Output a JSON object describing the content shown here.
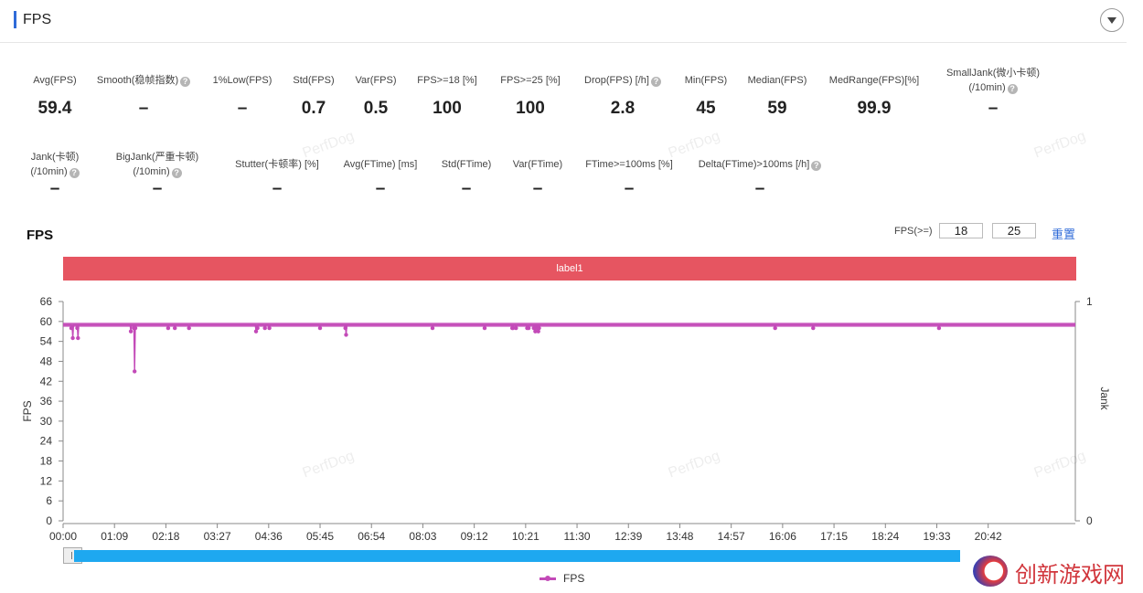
{
  "header": {
    "title": "FPS"
  },
  "metrics_row1": [
    {
      "label": "Avg(FPS)",
      "value": "59.4",
      "help": false
    },
    {
      "label": "Smooth(稳帧指数)",
      "value": "–",
      "help": true
    },
    {
      "label": "1%Low(FPS)",
      "value": "–",
      "help": false
    },
    {
      "label": "Std(FPS)",
      "value": "0.7",
      "help": false
    },
    {
      "label": "Var(FPS)",
      "value": "0.5",
      "help": false
    },
    {
      "label": "FPS>=18 [%]",
      "value": "100",
      "help": false
    },
    {
      "label": "FPS>=25 [%]",
      "value": "100",
      "help": false
    },
    {
      "label": "Drop(FPS) [/h]",
      "value": "2.8",
      "help": true
    },
    {
      "label": "Min(FPS)",
      "value": "45",
      "help": false
    },
    {
      "label": "Median(FPS)",
      "value": "59",
      "help": false
    },
    {
      "label": "MedRange(FPS)[%]",
      "value": "99.9",
      "help": false
    },
    {
      "label": "SmallJank(微小卡顿)",
      "label2": "(/10min)",
      "value": "–",
      "help": true
    }
  ],
  "metrics_row2": [
    {
      "label": "Jank(卡顿)",
      "label2": "(/10min)",
      "value": "–",
      "help": true
    },
    {
      "label": "BigJank(严重卡顿)",
      "label2": "(/10min)",
      "value": "–",
      "help": true
    },
    {
      "label": "Stutter(卡顿率) [%]",
      "value": "–",
      "help": false
    },
    {
      "label": "Avg(FTime) [ms]",
      "value": "–",
      "help": false
    },
    {
      "label": "Std(FTime)",
      "value": "–",
      "help": false
    },
    {
      "label": "Var(FTime)",
      "value": "–",
      "help": false
    },
    {
      "label": "FTime>=100ms [%]",
      "value": "–",
      "help": false
    },
    {
      "label": "Delta(FTime)>100ms [/h]",
      "value": "–",
      "help": true
    }
  ],
  "chart_title": "FPS",
  "threshold": {
    "label": "FPS(>=)",
    "low": "18",
    "high": "25",
    "reset": "重置"
  },
  "label_band": "label1",
  "watermark": "PerfDog",
  "brand_text": "创新游戏网",
  "colors": {
    "accent": "#2f6bd8",
    "series": "#c34ab8",
    "label_band": "#e65561",
    "slider": "#1ea8f0"
  },
  "chart_data": {
    "type": "line",
    "xlabel": "",
    "ylabel": "FPS",
    "y2label": "Jank",
    "ylim": [
      0,
      66
    ],
    "yticks": [
      0,
      6,
      12,
      18,
      24,
      30,
      36,
      42,
      48,
      54,
      60,
      66
    ],
    "y2lim": [
      0,
      1
    ],
    "y2ticks": [
      0,
      1
    ],
    "xlim_seconds": [
      0,
      1359
    ],
    "xticks": [
      "00:00",
      "01:09",
      "02:18",
      "03:27",
      "04:36",
      "05:45",
      "06:54",
      "08:03",
      "09:12",
      "10:21",
      "11:30",
      "12:39",
      "13:48",
      "14:57",
      "16:06",
      "17:15",
      "18:24",
      "19:33",
      "20:42"
    ],
    "grid": false,
    "legend": "bottom-center",
    "series": [
      {
        "name": "FPS",
        "baseline": 59,
        "x": [
          "00:11",
          "00:13",
          "00:19",
          "00:20",
          "01:31",
          "01:35",
          "01:36",
          "01:37",
          "02:21",
          "02:30",
          "02:49",
          "04:19",
          "04:21",
          "04:31",
          "04:37",
          "05:45",
          "06:19",
          "06:20",
          "08:16",
          "09:26",
          "10:03",
          "10:04",
          "10:08",
          "10:23",
          "10:25",
          "10:32",
          "10:33",
          "10:34",
          "10:37",
          "10:38",
          "10:39",
          "15:56",
          "16:47",
          "19:36"
        ],
        "y": [
          58,
          55,
          58,
          55,
          57,
          58,
          45,
          58,
          58,
          58,
          58,
          57,
          58,
          58,
          58,
          58,
          58,
          56,
          58,
          58,
          58,
          58,
          58,
          58,
          58,
          58,
          58,
          57,
          58,
          57,
          58,
          58,
          58,
          58
        ]
      }
    ]
  }
}
